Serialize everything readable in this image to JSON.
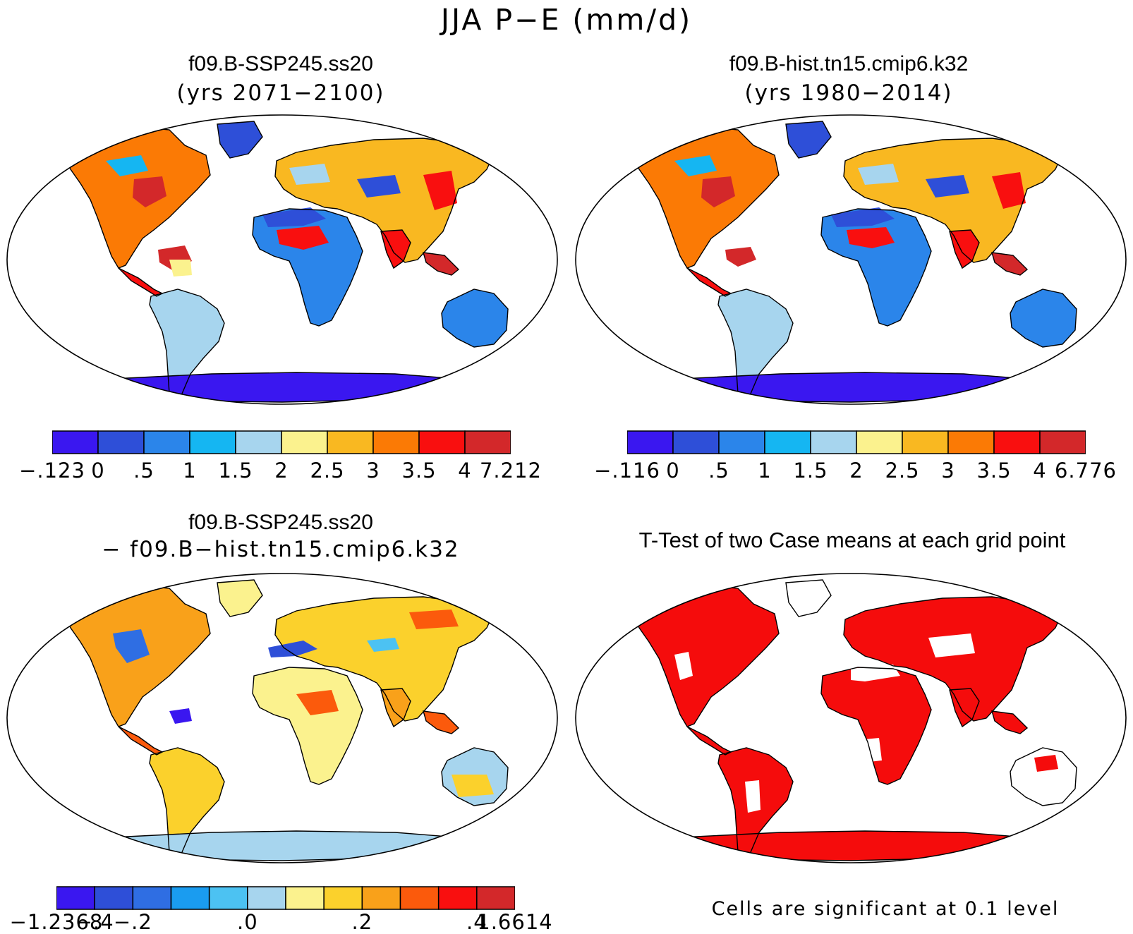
{
  "figure": {
    "title": "JJA P−E (mm/d)"
  },
  "panels": [
    {
      "id": "top-left",
      "title": "f09.B-SSP245.ss20",
      "subtitle": "(yrs 2071−2100)",
      "kind": "field",
      "colorbar": {
        "colors": [
          "#3a17f0",
          "#2e4fd8",
          "#2b85ea",
          "#15b6f2",
          "#a7d5ee",
          "#fbf28e",
          "#f9b821",
          "#fb7a05",
          "#f90f0f",
          "#d3282a"
        ],
        "labels": [
          "−.123",
          "0",
          ".5",
          "1",
          "1.5",
          "2",
          "2.5",
          "3",
          "3.5",
          "4",
          "7.212"
        ]
      }
    },
    {
      "id": "top-right",
      "title": "f09.B-hist.tn15.cmip6.k32",
      "subtitle": "(yrs 1980−2014)",
      "kind": "field",
      "colorbar": {
        "colors": [
          "#3a17f0",
          "#2e4fd8",
          "#2b85ea",
          "#15b6f2",
          "#a7d5ee",
          "#fbf28e",
          "#f9b821",
          "#fb7a05",
          "#f90f0f",
          "#d3282a"
        ],
        "labels": [
          "−.116",
          "0",
          ".5",
          "1",
          "1.5",
          "2",
          "2.5",
          "3",
          "3.5",
          "4",
          "6.776"
        ]
      }
    },
    {
      "id": "bottom-left",
      "title": "f09.B-SSP245.ss20",
      "subtitle": "− f09.B−hist.tn15.cmip6.k32",
      "kind": "difference",
      "colorbar": {
        "colors": [
          "#3a17f0",
          "#2e4fd8",
          "#2f6ee3",
          "#1a9cf0",
          "#4cc2f2",
          "#a7d5ee",
          "#fbf28e",
          "#fbd12c",
          "#f9a11a",
          "#fb5a0c",
          "#f90f0f",
          "#d3282a"
        ],
        "labels": [
          "−1.2368",
          "−.4",
          "−.2",
          ".0",
          ".2",
          ".4",
          "1.6614"
        ]
      }
    },
    {
      "id": "bottom-right",
      "title": "T-Test of two Case means at each grid point",
      "subtitle": "",
      "kind": "significance",
      "note": "Cells are significant at 0.1 level"
    }
  ]
}
